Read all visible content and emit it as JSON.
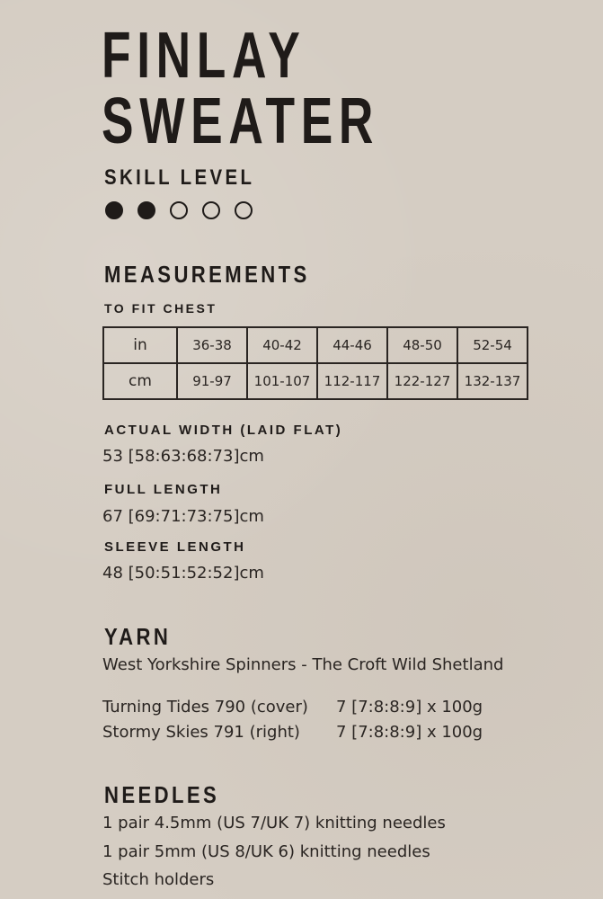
{
  "title": {
    "line1": "FINLAY",
    "line2": "SWEATER"
  },
  "skill": {
    "label": "SKILL LEVEL",
    "level": 2,
    "max": 5
  },
  "measurements": {
    "heading": "MEASUREMENTS",
    "chest_label": "TO FIT CHEST",
    "table": [
      {
        "unit": "in",
        "values": [
          "36-38",
          "40-42",
          "44-46",
          "48-50",
          "52-54"
        ]
      },
      {
        "unit": "cm",
        "values": [
          "91-97",
          "101-107",
          "112-117",
          "122-127",
          "132-137"
        ]
      }
    ],
    "actual_width_label": "ACTUAL WIDTH (LAID FLAT)",
    "actual_width": "53 [58:63:68:73]cm",
    "full_length_label": "FULL LENGTH",
    "full_length": "67 [69:71:73:75]cm",
    "sleeve_length_label": "SLEEVE LENGTH",
    "sleeve_length": "48 [50:51:52:52]cm"
  },
  "yarn": {
    "heading": "YARN",
    "brand": "West Yorkshire Spinners - The Croft Wild Shetland",
    "colours": [
      {
        "name": "Turning Tides 790 (cover)",
        "qty": "7 [7:8:8:9] x 100g"
      },
      {
        "name": "Stormy Skies 791 (right)",
        "qty": "7 [7:8:8:9] x 100g"
      }
    ]
  },
  "needles": {
    "heading": "NEEDLES",
    "items": [
      "1 pair 4.5mm (US 7/UK 7) knitting needles",
      "1 pair 5mm (US 8/UK 6) knitting needles",
      "Stitch holders"
    ]
  }
}
